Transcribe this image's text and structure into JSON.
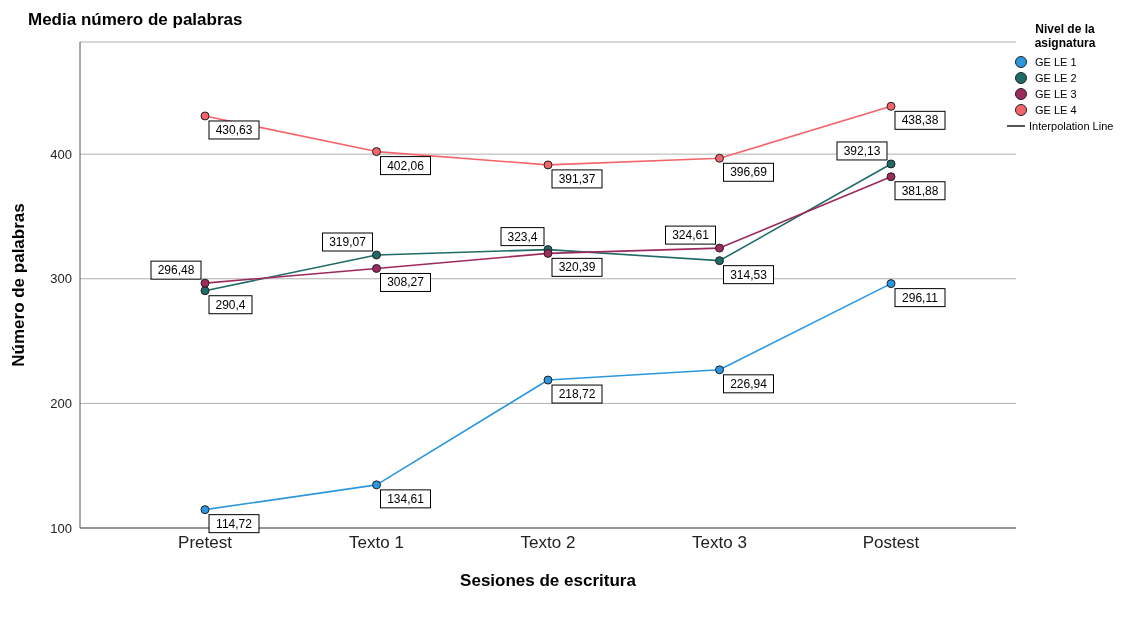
{
  "chart_data": {
    "type": "line",
    "title": "Media número de palabras",
    "xlabel": "Sesiones de escritura",
    "ylabel": "Número de palabras",
    "legend_title": "Nivel de la asignatura",
    "categories": [
      "Pretest",
      "Texto 1",
      "Texto 2",
      "Texto 3",
      "Postest"
    ],
    "series": [
      {
        "name": "GE LE 1",
        "color": "#2b97e0",
        "values": [
          114.72,
          134.61,
          218.72,
          226.94,
          296.11
        ],
        "value_labels": [
          "114,72",
          "134,61",
          "218,72",
          "226,94",
          "296,11"
        ]
      },
      {
        "name": "GE LE 2",
        "color": "#1f6b68",
        "values": [
          290.4,
          319.07,
          323.4,
          314.53,
          392.13
        ],
        "value_labels": [
          "290,4",
          "319,07",
          "323,4",
          "314,53",
          "392,13"
        ]
      },
      {
        "name": "GE LE 3",
        "color": "#9c2a5c",
        "values": [
          296.48,
          308.27,
          320.39,
          324.61,
          381.88
        ],
        "value_labels": [
          "296,48",
          "308,27",
          "320,39",
          "324,61",
          "381,88"
        ]
      },
      {
        "name": "GE LE 4",
        "color": "#f4646a",
        "values": [
          430.63,
          402.06,
          391.37,
          396.69,
          438.38
        ],
        "value_labels": [
          "430,63",
          "402,06",
          "391,37",
          "396,69",
          "438,38"
        ]
      }
    ],
    "annotations": [
      "Interpolation Line"
    ],
    "ylim": [
      100,
      490
    ],
    "yticks": [
      100,
      200,
      300,
      400
    ],
    "grid": "y",
    "legend": "top right",
    "marker": "circle",
    "line_style": "solid"
  }
}
